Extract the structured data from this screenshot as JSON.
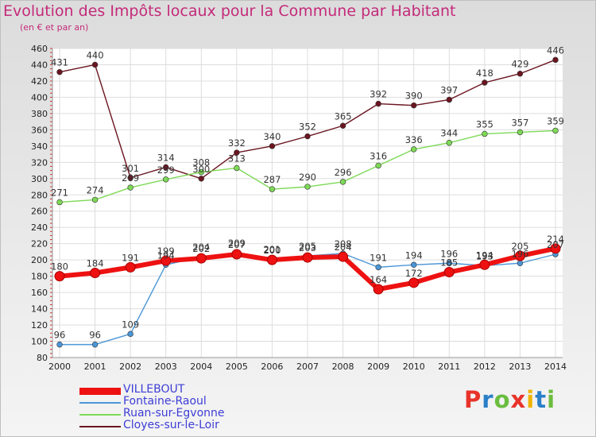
{
  "title": "Evolution des Impôts locaux pour la Commune par Habitant",
  "subtitle": "(en € et par an)",
  "brand": "Proxiti",
  "brand_colors": [
    "#e8332a",
    "#2b7fc8",
    "#6bbd3f",
    "#e8332a",
    "#f0b400",
    "#2b7fc8",
    "#6bbd3f"
  ],
  "chart_data": {
    "type": "line",
    "title": "Evolution des Impôts locaux pour la Commune par Habitant",
    "subtitle": "(en € et par an)",
    "x": [
      2000,
      2001,
      2002,
      2003,
      2004,
      2005,
      2006,
      2007,
      2008,
      2009,
      2010,
      2011,
      2012,
      2013,
      2014
    ],
    "ylim": [
      80,
      460
    ],
    "yticks": [
      80,
      100,
      120,
      140,
      160,
      180,
      200,
      220,
      240,
      260,
      280,
      300,
      320,
      340,
      360,
      380,
      400,
      420,
      440,
      460
    ],
    "grid": true,
    "legend_position": "bottom-left",
    "series": [
      {
        "name": "VILLEBOUT",
        "color": "#ee1111",
        "values": [
          180,
          184,
          191,
          199,
          202,
          207,
          200,
          203,
          204,
          164,
          172,
          185,
          194,
          205,
          214
        ]
      },
      {
        "name": "Fontaine-Raoul",
        "color": "#4a96d8",
        "values": [
          96,
          96,
          109,
          194,
          204,
          209,
          201,
          205,
          208,
          191,
          194,
          196,
          193,
          196,
          207
        ]
      },
      {
        "name": "Ruan-sur-Egvonne",
        "color": "#7ed957",
        "values": [
          271,
          274,
          289,
          299,
          308,
          313,
          287,
          290,
          296,
          316,
          336,
          344,
          355,
          357,
          359
        ]
      },
      {
        "name": "Cloyes-sur-le-Loir",
        "color": "#6b1520",
        "values": [
          431,
          440,
          301,
          314,
          300,
          332,
          340,
          352,
          365,
          392,
          390,
          397,
          418,
          429,
          446
        ]
      }
    ]
  }
}
